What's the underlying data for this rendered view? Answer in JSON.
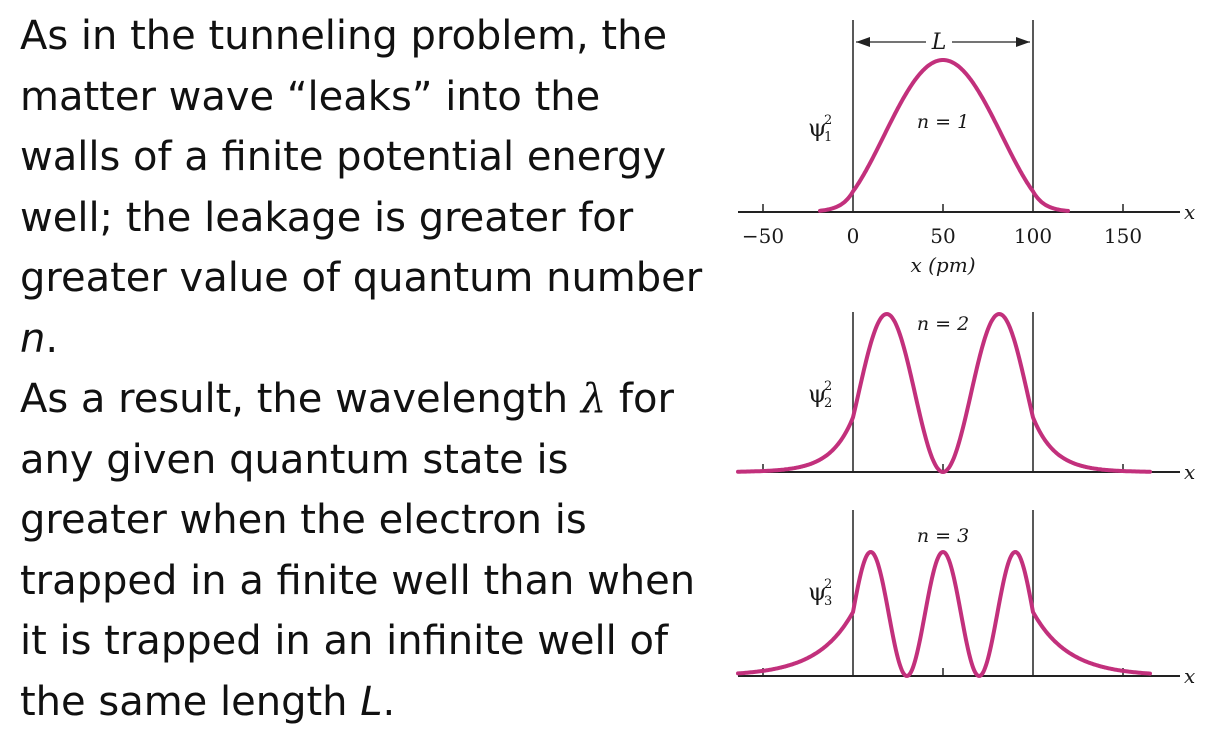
{
  "text": {
    "p1": "As in the tunneling problem, the matter wave “leaks” into the walls of a finite potential energy well; the leakage is greater for greater value of quantum number ",
    "p1_var": "n",
    "p1_end": ".",
    "p2_a": "As a result, the wavelength ",
    "p2_sym": "λ",
    "p2_b": " for any given quantum state is greater when the electron is trapped in a finite well than when it is trapped in an infinite well of the same length ",
    "p2_var": "L",
    "p2_end": "."
  },
  "figure": {
    "curve_color": "#C2307C",
    "axis_color": "#222222",
    "well_label": "L",
    "axis_var": "x",
    "xlabel": "x (pm)",
    "ticks": [
      "−50",
      "0",
      "50",
      "100",
      "150"
    ],
    "panels": [
      {
        "n_label": "n = 1",
        "psi": "ψ",
        "sup": "2",
        "sub": "1"
      },
      {
        "n_label": "n = 2",
        "psi": "ψ",
        "sup": "2",
        "sub": "2"
      },
      {
        "n_label": "n = 3",
        "psi": "ψ",
        "sup": "2",
        "sub": "3"
      }
    ]
  }
}
